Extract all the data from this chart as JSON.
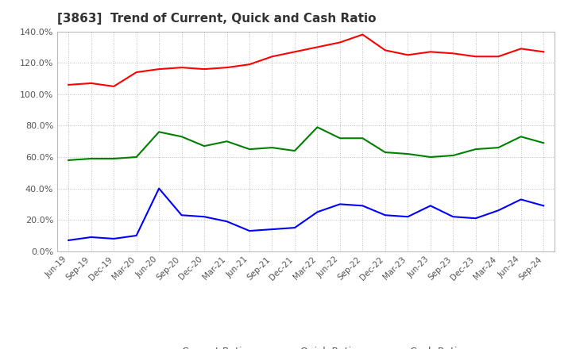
{
  "title": "[3863]  Trend of Current, Quick and Cash Ratio",
  "x_labels": [
    "Jun-19",
    "Sep-19",
    "Dec-19",
    "Mar-20",
    "Jun-20",
    "Sep-20",
    "Dec-20",
    "Mar-21",
    "Jun-21",
    "Sep-21",
    "Dec-21",
    "Mar-22",
    "Jun-22",
    "Sep-22",
    "Dec-22",
    "Mar-23",
    "Jun-23",
    "Sep-23",
    "Dec-23",
    "Mar-24",
    "Jun-24",
    "Sep-24"
  ],
  "current_ratio": [
    1.06,
    1.07,
    1.05,
    1.14,
    1.16,
    1.17,
    1.16,
    1.17,
    1.19,
    1.24,
    1.27,
    1.3,
    1.33,
    1.38,
    1.28,
    1.25,
    1.27,
    1.26,
    1.24,
    1.24,
    1.29,
    1.27
  ],
  "quick_ratio": [
    0.58,
    0.59,
    0.59,
    0.6,
    0.76,
    0.73,
    0.67,
    0.7,
    0.65,
    0.66,
    0.64,
    0.79,
    0.72,
    0.72,
    0.63,
    0.62,
    0.6,
    0.61,
    0.65,
    0.66,
    0.73,
    0.69
  ],
  "cash_ratio": [
    0.07,
    0.09,
    0.08,
    0.1,
    0.4,
    0.23,
    0.22,
    0.19,
    0.13,
    0.14,
    0.15,
    0.25,
    0.3,
    0.29,
    0.23,
    0.22,
    0.29,
    0.22,
    0.21,
    0.26,
    0.33,
    0.29
  ],
  "current_color": "#FF0000",
  "quick_color": "#008000",
  "cash_color": "#0000FF",
  "ylim": [
    0.0,
    1.4
  ],
  "yticks": [
    0.0,
    0.2,
    0.4,
    0.6,
    0.8,
    1.0,
    1.2,
    1.4
  ],
  "background_color": "#FFFFFF",
  "grid_color": "#BBBBBB"
}
